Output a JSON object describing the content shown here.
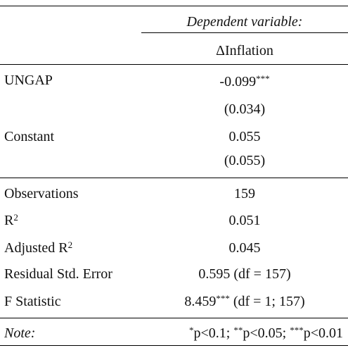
{
  "header": {
    "dependent_variable_label": "Dependent variable:",
    "column_name": "ΔInflation"
  },
  "coefficients": [
    {
      "name": "UNGAP",
      "estimate": "-0.099",
      "stars": "***",
      "std_error": "(0.034)"
    },
    {
      "name": "Constant",
      "estimate": "0.055",
      "stars": "",
      "std_error": "(0.055)"
    }
  ],
  "statistics": {
    "observations": {
      "label": "Observations",
      "value": "159"
    },
    "r2": {
      "label": "R",
      "sup": "2",
      "value": "0.051"
    },
    "adjusted_r2": {
      "label": "Adjusted R",
      "sup": "2",
      "value": "0.045"
    },
    "residual_se": {
      "label": "Residual Std. Error",
      "value": "0.595 (df = 157)"
    },
    "f_statistic": {
      "label": "F Statistic",
      "value": "8.459",
      "stars": "***",
      "df": " (df = 1; 157)"
    }
  },
  "note": {
    "label": "Note:",
    "sig1_stars": "*",
    "sig1_text": "p<0.1; ",
    "sig2_stars": "**",
    "sig2_text": "p<0.05; ",
    "sig3_stars": "***",
    "sig3_text": "p<0.01"
  }
}
